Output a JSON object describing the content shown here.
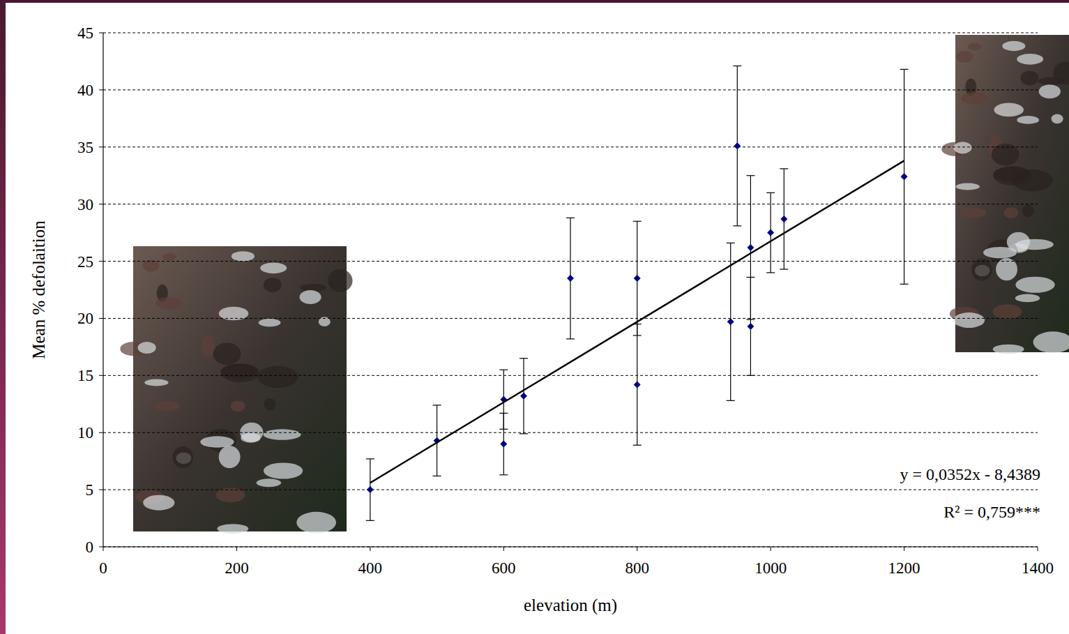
{
  "chart_data": {
    "type": "scatter",
    "x_label": "elevation (m)",
    "y_label": "Mean % defolaition",
    "annotations": [
      "y = 0,0352x - 8,4389",
      "R² = 0,759***"
    ],
    "xlim": [
      0,
      1400
    ],
    "xticks": [
      0,
      200,
      400,
      600,
      800,
      1000,
      1200,
      1400
    ],
    "ylim": [
      0,
      45
    ],
    "yticks": [
      0,
      5,
      10,
      15,
      20,
      25,
      30,
      35,
      40,
      45
    ],
    "grid": true,
    "series": [
      {
        "type": "scatter",
        "marker": "diamond",
        "color": "#000080",
        "x": [
          400,
          500,
          600,
          600,
          630,
          700,
          800,
          800,
          940,
          950,
          970,
          970,
          1000,
          1020,
          1200
        ],
        "values": [
          5.0,
          9.3,
          12.9,
          9.0,
          13.2,
          23.5,
          23.5,
          14.2,
          19.7,
          35.1,
          26.2,
          19.3,
          27.5,
          28.7,
          32.4
        ],
        "errors": [
          2.7,
          3.1,
          2.6,
          2.7,
          3.3,
          5.3,
          5.0,
          5.3,
          6.9,
          7.0,
          6.3,
          4.3,
          3.5,
          4.4,
          9.4
        ]
      },
      {
        "type": "line",
        "line_style": "solid",
        "color": "#000000",
        "x": [
          400,
          1200
        ],
        "values": [
          5.6,
          33.8
        ]
      }
    ]
  }
}
